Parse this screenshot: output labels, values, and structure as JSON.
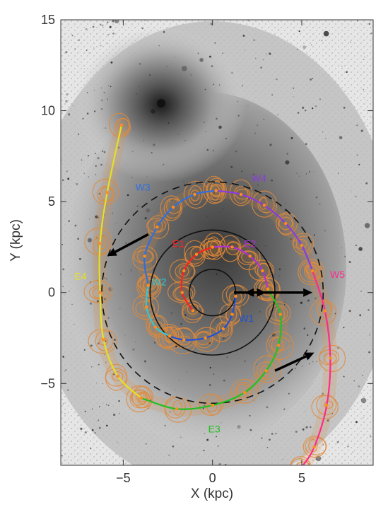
{
  "chart_data": {
    "type": "scatter",
    "title": "",
    "xlabel": "X (kpc)",
    "ylabel": "Y (kpc)",
    "xlim": [
      -8.5,
      9
    ],
    "ylim": [
      -9.5,
      15
    ],
    "x_ticks": [
      -5,
      0,
      5
    ],
    "y_ticks": [
      -5,
      0,
      5,
      10,
      15
    ],
    "grid": false,
    "legend": "none",
    "background": "grayscale galaxy image with orange HI contours",
    "colors": {
      "W1": "#2050d8",
      "W2": "#30c8d8",
      "W3": "#2f6fe0",
      "W4": "#8a3ce0",
      "W5": "#ff2a8a",
      "E2": "#b030d8",
      "E3": "#20c020",
      "E4": "#e8e020",
      "E": "#ff2020",
      "contours": "#e08a3a",
      "arrows": "#000000"
    },
    "arm_labels": [
      {
        "label": "W1",
        "x": 1.9,
        "y": -1.6
      },
      {
        "label": "W2",
        "x": -3.0,
        "y": 0.4
      },
      {
        "label": "W3",
        "x": -3.9,
        "y": 5.6
      },
      {
        "label": "W4",
        "x": 2.6,
        "y": 6.1
      },
      {
        "label": "W5",
        "x": 7.0,
        "y": 0.8
      },
      {
        "label": "E1",
        "x": -1.9,
        "y": 2.5
      },
      {
        "label": "E2",
        "x": 2.1,
        "y": 2.5
      },
      {
        "label": "E3",
        "x": 0.1,
        "y": -7.7
      },
      {
        "label": "E4",
        "x": -7.4,
        "y": 0.7
      }
    ],
    "arms": [
      {
        "id": "W1",
        "points": [
          [
            1.3,
            -0.2
          ],
          [
            1.1,
            -1.2
          ],
          [
            0.6,
            -2.0
          ],
          [
            -0.4,
            -2.5
          ],
          [
            -1.6,
            -2.6
          ],
          [
            -2.4,
            -2.4
          ]
        ]
      },
      {
        "id": "W2",
        "points": [
          [
            -2.4,
            -2.4
          ],
          [
            -3.2,
            -1.9
          ],
          [
            -3.7,
            -0.8
          ],
          [
            -3.6,
            0.4
          ]
        ]
      },
      {
        "id": "W3",
        "points": [
          [
            -3.6,
            0.4
          ],
          [
            -3.8,
            2.0
          ],
          [
            -3.1,
            3.6
          ],
          [
            -2.2,
            4.7
          ],
          [
            -1.0,
            5.4
          ],
          [
            0.2,
            5.6
          ]
        ]
      },
      {
        "id": "W4",
        "points": [
          [
            0.2,
            5.6
          ],
          [
            1.6,
            5.4
          ],
          [
            2.9,
            4.8
          ],
          [
            4.1,
            3.8
          ],
          [
            5.0,
            2.6
          ],
          [
            5.6,
            1.2
          ]
        ]
      },
      {
        "id": "W5",
        "points": [
          [
            5.6,
            1.2
          ],
          [
            6.3,
            -1.0
          ],
          [
            6.6,
            -3.6
          ],
          [
            6.4,
            -6.2
          ],
          [
            5.7,
            -8.5
          ],
          [
            5.0,
            -9.6
          ]
        ]
      },
      {
        "id": "E1",
        "points": [
          [
            -1.1,
            -1.0
          ],
          [
            -1.7,
            0.0
          ],
          [
            -1.6,
            1.2
          ],
          [
            -0.9,
            2.1
          ],
          [
            0.0,
            2.5
          ]
        ]
      },
      {
        "id": "E2",
        "points": [
          [
            0.0,
            2.5
          ],
          [
            1.1,
            2.5
          ],
          [
            2.1,
            2.0
          ],
          [
            2.8,
            1.2
          ],
          [
            3.1,
            0.2
          ]
        ]
      },
      {
        "id": "E3",
        "points": [
          [
            3.1,
            0.2
          ],
          [
            3.8,
            -1.2
          ],
          [
            3.7,
            -2.9
          ],
          [
            3.0,
            -4.3
          ],
          [
            1.8,
            -5.5
          ],
          [
            0.0,
            -6.2
          ],
          [
            -2.0,
            -6.4
          ],
          [
            -4.0,
            -5.8
          ]
        ]
      },
      {
        "id": "E4",
        "points": [
          [
            -4.0,
            -5.8
          ],
          [
            -5.3,
            -4.6
          ],
          [
            -6.1,
            -2.6
          ],
          [
            -6.3,
            0.0
          ],
          [
            -6.3,
            2.7
          ],
          [
            -5.9,
            5.5
          ],
          [
            -5.1,
            9.2
          ]
        ]
      }
    ],
    "circles": [
      {
        "style": "solid",
        "radius": 3.5
      },
      {
        "style": "solid",
        "radius": 1.3
      },
      {
        "style": "dashed",
        "radius": 6.2
      }
    ],
    "arrows": [
      {
        "from": [
          -3.6,
          3.2
        ],
        "to": [
          -5.9,
          2.0
        ]
      },
      {
        "from": [
          1.2,
          0.0
        ],
        "to": [
          3.0,
          0.0
        ]
      },
      {
        "from": [
          3.8,
          0.0
        ],
        "to": [
          1.8,
          0.0
        ]
      },
      {
        "from": [
          3.8,
          0.0
        ],
        "to": [
          5.6,
          0.0
        ]
      },
      {
        "from": [
          3.5,
          -4.3
        ],
        "to": [
          5.7,
          -3.3
        ]
      }
    ]
  }
}
